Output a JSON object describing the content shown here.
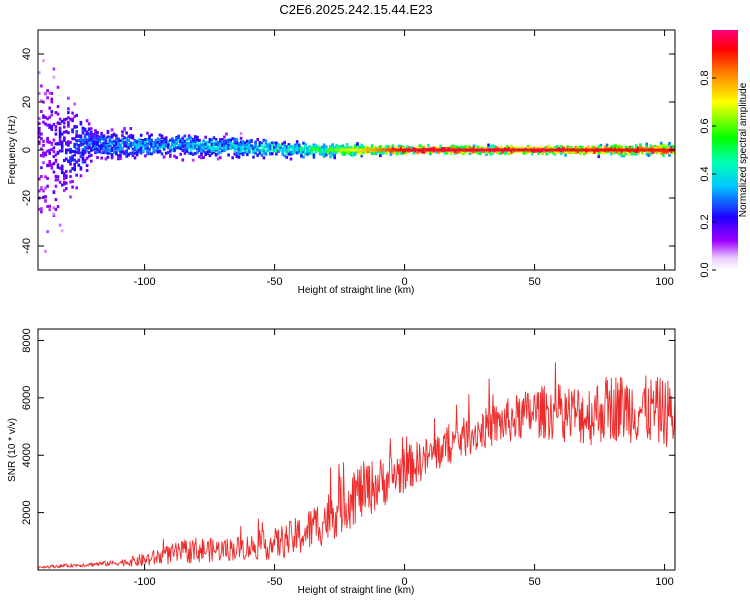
{
  "title": "C2E6.2025.242.15.44.E23",
  "chart_data": [
    {
      "type": "heatmap",
      "name": "spectrogram",
      "xlabel": "Height of straight line (km)",
      "ylabel": "Frequency (Hz)",
      "xlim": [
        -141,
        104
      ],
      "ylim": [
        -50,
        50
      ],
      "x_ticks": [
        -100,
        -50,
        0,
        50,
        100
      ],
      "y_ticks": [
        -40,
        -20,
        0,
        20,
        40
      ],
      "x_tick_labels": [
        "-100",
        "-50",
        "0",
        "50",
        "100"
      ],
      "y_tick_labels": [
        "-40",
        "-20",
        "0",
        "20",
        "40"
      ],
      "colorbar": {
        "label": "Normalized spectral amplitude",
        "range": [
          0,
          1
        ],
        "ticks": [
          0.0,
          0.2,
          0.4,
          0.6,
          0.8
        ],
        "tick_labels": [
          "0.0",
          "0.2",
          "0.4",
          "0.6",
          "0.8"
        ]
      },
      "description_points": [
        {
          "height_km": -140,
          "center_hz": 0,
          "spread_hz": 50,
          "amplitude": 0.15
        },
        {
          "height_km": -120,
          "center_hz": 2,
          "spread_hz": 8,
          "amplitude": 0.3
        },
        {
          "height_km": -90,
          "center_hz": 2,
          "spread_hz": 6,
          "amplitude": 0.35
        },
        {
          "height_km": -60,
          "center_hz": 1,
          "spread_hz": 5,
          "amplitude": 0.4
        },
        {
          "height_km": -40,
          "center_hz": 0,
          "spread_hz": 4,
          "amplitude": 0.45
        },
        {
          "height_km": -20,
          "center_hz": 0,
          "spread_hz": 3,
          "amplitude": 0.7
        },
        {
          "height_km": 0,
          "center_hz": 0,
          "spread_hz": 2,
          "amplitude": 0.95
        },
        {
          "height_km": 50,
          "center_hz": 0,
          "spread_hz": 2,
          "amplitude": 0.95
        },
        {
          "height_km": 104,
          "center_hz": 0,
          "spread_hz": 3,
          "amplitude": 0.9
        }
      ]
    },
    {
      "type": "line",
      "name": "snr",
      "xlabel": "Height of straight line (km)",
      "ylabel": "SNR (10 * v/v)",
      "xlim": [
        -141,
        104
      ],
      "ylim": [
        0,
        8400
      ],
      "x_ticks": [
        -100,
        -50,
        0,
        50,
        100
      ],
      "y_ticks": [
        2000,
        4000,
        6000,
        8000
      ],
      "x_tick_labels": [
        "-100",
        "-50",
        "0",
        "50",
        "100"
      ],
      "y_tick_labels": [
        "2000",
        "4000",
        "6000",
        "8000"
      ],
      "color": "#ee2b2b",
      "series": [
        {
          "name": "SNR",
          "x": [
            -141,
            -130,
            -120,
            -110,
            -100,
            -90,
            -80,
            -70,
            -60,
            -50,
            -40,
            -30,
            -20,
            -10,
            0,
            10,
            20,
            30,
            40,
            50,
            60,
            70,
            80,
            90,
            100,
            104
          ],
          "values": [
            100,
            150,
            200,
            250,
            350,
            550,
            700,
            700,
            800,
            900,
            1200,
            1800,
            2600,
            3000,
            3500,
            4000,
            4500,
            4900,
            5200,
            5500,
            5500,
            5400,
            5700,
            5600,
            5500,
            5400
          ],
          "noise": [
            50,
            60,
            80,
            100,
            250,
            350,
            450,
            400,
            450,
            550,
            700,
            900,
            1100,
            900,
            800,
            700,
            700,
            700,
            800,
            900,
            1000,
            1100,
            1200,
            1200,
            1200,
            1200
          ]
        }
      ]
    }
  ]
}
